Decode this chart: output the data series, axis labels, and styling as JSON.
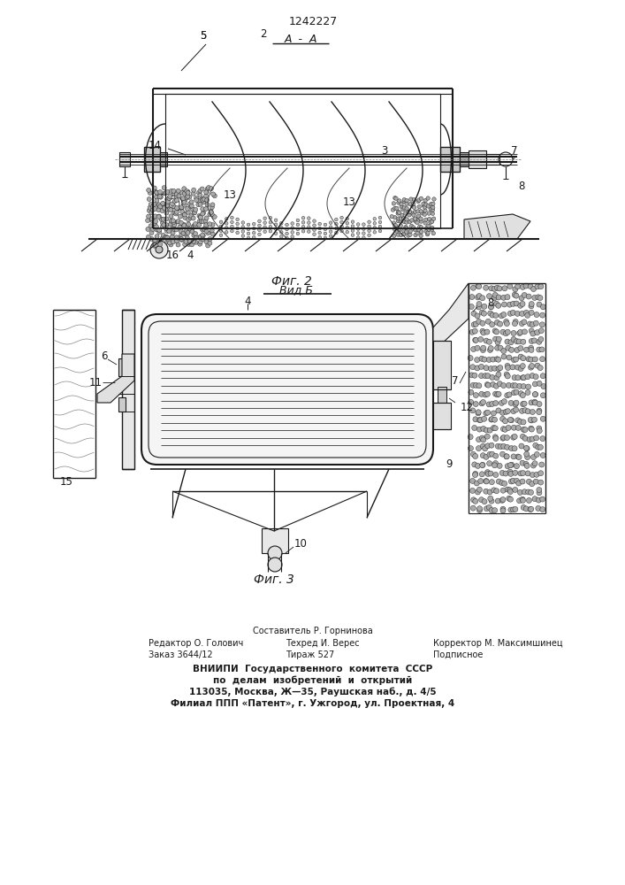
{
  "patent_number": "1242227",
  "bg_color": "#ffffff",
  "line_color": "#1a1a1a",
  "footer_col1_line1": "Редактор О. Голович",
  "footer_col1_line2": "Заказ 3644/12",
  "footer_col2_line0": "Составитель Р. Горнинова",
  "footer_col2_line1": "Техред И. Верес",
  "footer_col2_line2": "Тираж 527",
  "footer_col3_line1": "Корректор М. Максимшинец",
  "footer_col3_line2": "Подписное",
  "footer_vnipi1": "ВНИИПИ  Государственного  комитета  СССР",
  "footer_vnipi2": "по  делам  изобретений  и  открытий",
  "footer_addr1": "113035, Москва, Ж—35, Раушская наб., д. 4/5",
  "footer_addr2": "Филиал ППП «Патент», г. Ужгород, ул. Проектная, 4"
}
